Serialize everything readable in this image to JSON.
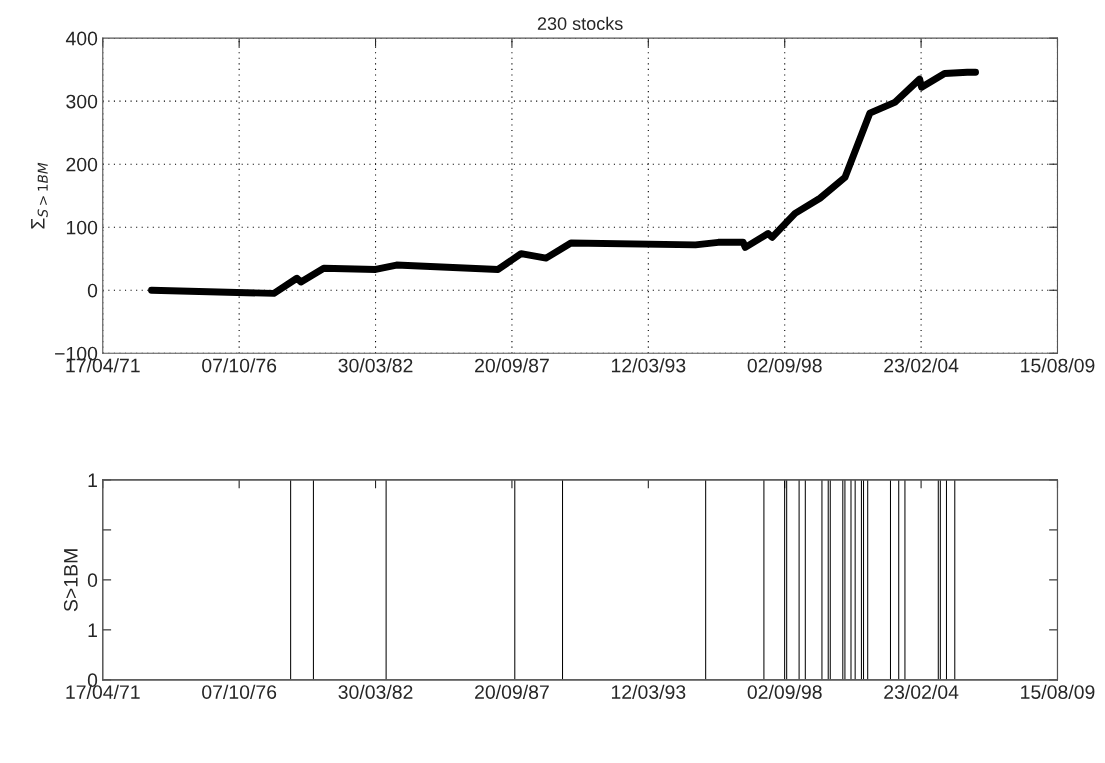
{
  "chart_data": [
    {
      "type": "line",
      "title": "230 stocks",
      "ylabel": "Σ$_{S>1BM}$",
      "xlim": [
        "1971-04-17",
        "2009-08-15"
      ],
      "xticks": [
        {
          "value": "1971-04-17",
          "label": "17/04/71"
        },
        {
          "value": "1976-10-07",
          "label": "07/10/76"
        },
        {
          "value": "1982-03-30",
          "label": "30/03/82"
        },
        {
          "value": "1987-09-20",
          "label": "20/09/87"
        },
        {
          "value": "1993-03-12",
          "label": "12/03/93"
        },
        {
          "value": "1998-09-02",
          "label": "02/09/98"
        },
        {
          "value": "2004-02-23",
          "label": "23/02/04"
        },
        {
          "value": "2009-08-15",
          "label": "15/08/09"
        }
      ],
      "ylim": [
        -100,
        400
      ],
      "yticks": [
        -100,
        0,
        100,
        200,
        300,
        400
      ],
      "grid": true,
      "line_style": "solid",
      "series": [
        {
          "color": "#000000",
          "x": [
            "1973-04",
            "1978-03",
            "1979-02",
            "1979-04",
            "1980-03",
            "1982-04",
            "1983-02",
            "1987-03",
            "1988-02",
            "1989-02",
            "1990-02",
            "1995-02",
            "1996-01",
            "1997-01",
            "1997-02",
            "1998-01",
            "1998-03",
            "1999-02",
            "2000-02",
            "2001-02",
            "2002-02",
            "2003-02",
            "2004-02",
            "2004-03",
            "2005-02",
            "2006-01",
            "2006-05"
          ],
          "values": [
            0,
            -5,
            19,
            13,
            35,
            33,
            40,
            33,
            58,
            51,
            75,
            72,
            76,
            76,
            68,
            90,
            84,
            122,
            146,
            179,
            281,
            298,
            335,
            322,
            344,
            346,
            346
          ]
        }
      ]
    },
    {
      "type": "bar",
      "y2label": "S>1BM",
      "xlim": [
        "1971-04-17",
        "2009-08-15"
      ],
      "xticks": [
        {
          "value": "1971-04-17",
          "label": "17/04/71"
        },
        {
          "value": "1976-10-07",
          "label": "07/10/76"
        },
        {
          "value": "1982-03-30",
          "label": "30/03/82"
        },
        {
          "value": "1987-09-20",
          "label": "20/09/87"
        },
        {
          "value": "1993-03-12",
          "label": "12/03/93"
        },
        {
          "value": "1998-09-02",
          "label": "02/09/98"
        },
        {
          "value": "2004-02-23",
          "label": "23/02/04"
        },
        {
          "value": "2009-08-15",
          "label": "15/08/09"
        }
      ],
      "ylim": [
        0,
        1
      ],
      "yticks": [
        0,
        1
      ],
      "y2lim": [
        2,
        -2
      ],
      "y2ticks": [
        {
          "value": -1,
          "label": null
        },
        0,
        1
      ],
      "series": [
        {
          "color": "#000000",
          "x": [
            "1978-11",
            "1979-10",
            "1982-09",
            "1987-11",
            "1989-10",
            "1995-07",
            "1997-11",
            "1998-09",
            "1998-10",
            "1999-04",
            "1999-07",
            "2000-03",
            "2000-06",
            "2000-07",
            "2001-01",
            "2001-02",
            "2001-05",
            "2001-07",
            "2001-10",
            "2001-11",
            "2002-01",
            "2002-12",
            "2003-04",
            "2003-07",
            "2004-11",
            "2004-12",
            "2005-03",
            "2005-07"
          ],
          "values": [
            1,
            1,
            1,
            1,
            1,
            1,
            1,
            1,
            1,
            1,
            1,
            1,
            1,
            1,
            1,
            1,
            1,
            1,
            1,
            1,
            1,
            1,
            1,
            1,
            1,
            1,
            1,
            1
          ]
        }
      ]
    }
  ]
}
